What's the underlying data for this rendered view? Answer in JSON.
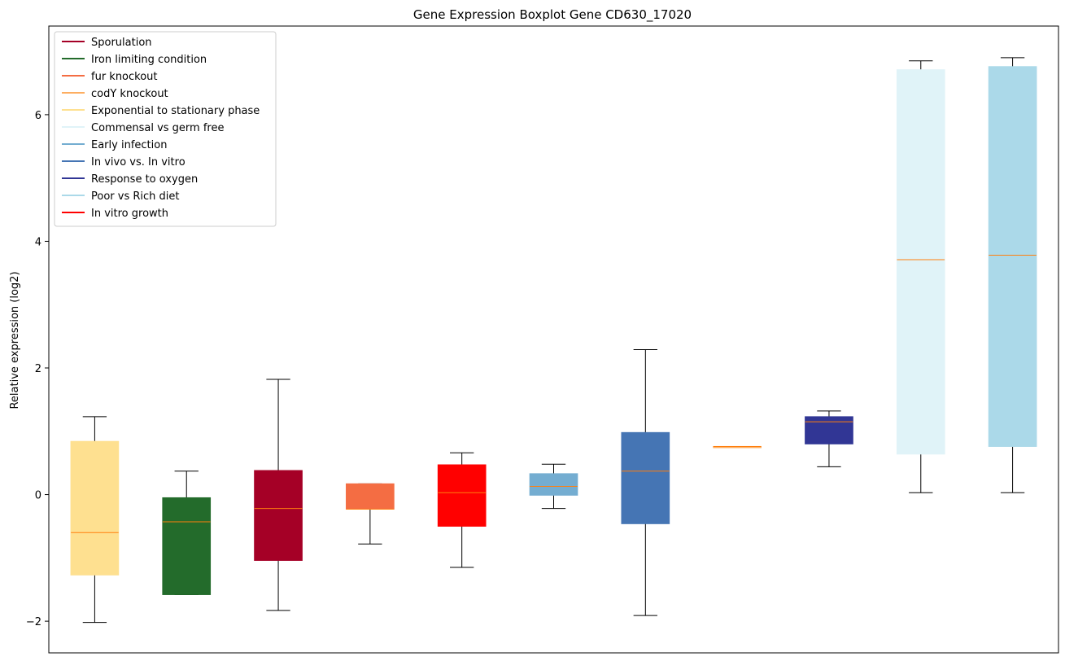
{
  "chart_data": {
    "type": "boxplot",
    "title": "Gene Expression Boxplot Gene CD630_17020",
    "xlabel": "",
    "ylabel": "Relative expression (log2)",
    "ylim": [
      -2.5,
      7.4
    ],
    "yticks": [
      -2,
      0,
      2,
      4,
      6
    ],
    "ytick_labels": [
      "−2",
      "0",
      "2",
      "4",
      "6"
    ],
    "legend_position": "top-left",
    "legend": [
      {
        "label": "Sporulation",
        "color": "#a50026"
      },
      {
        "label": "Iron limiting condition",
        "color": "#236b2b"
      },
      {
        "label": "fur knockout",
        "color": "#f46d43"
      },
      {
        "label": "codY knockout",
        "color": "#fdae61"
      },
      {
        "label": "Exponential to stationary phase",
        "color": "#fee090"
      },
      {
        "label": "Commensal vs germ free",
        "color": "#e0f3f8"
      },
      {
        "label": "Early infection",
        "color": "#74add1"
      },
      {
        "label": "In vivo vs. In vitro",
        "color": "#4575b4"
      },
      {
        "label": "Response to oxygen",
        "color": "#313695"
      },
      {
        "label": "Poor vs Rich diet",
        "color": "#abd9e9"
      },
      {
        "label": "In vitro growth",
        "color": "#ff0000"
      }
    ],
    "boxes": [
      {
        "group": "Exponential to stationary phase",
        "color": "#fee090",
        "whisker_low": -2.02,
        "q1": -1.27,
        "median": -0.6,
        "q3": 0.84,
        "whisker_high": 1.23
      },
      {
        "group": "Iron limiting condition",
        "color": "#236b2b",
        "whisker_low": -1.58,
        "q1": -1.58,
        "median": -0.43,
        "q3": -0.05,
        "whisker_high": 0.37
      },
      {
        "group": "Sporulation",
        "color": "#a50026",
        "whisker_low": -1.83,
        "q1": -1.04,
        "median": -0.22,
        "q3": 0.38,
        "whisker_high": 1.82
      },
      {
        "group": "fur knockout",
        "color": "#f46d43",
        "whisker_low": -0.78,
        "q1": -0.23,
        "median": -0.23,
        "q3": 0.17,
        "whisker_high": 0.17
      },
      {
        "group": "In vitro growth",
        "color": "#ff0000",
        "whisker_low": -1.15,
        "q1": -0.5,
        "median": 0.03,
        "q3": 0.47,
        "whisker_high": 0.66
      },
      {
        "group": "Early infection",
        "color": "#74add1",
        "whisker_low": -0.22,
        "q1": -0.01,
        "median": 0.13,
        "q3": 0.33,
        "whisker_high": 0.48
      },
      {
        "group": "In vivo vs. In vitro",
        "color": "#4575b4",
        "whisker_low": -1.91,
        "q1": -0.46,
        "median": 0.37,
        "q3": 0.98,
        "whisker_high": 2.29
      },
      {
        "group": "codY knockout",
        "color": "#fdae61",
        "whisker_low": 0.76,
        "q1": 0.76,
        "median": 0.76,
        "q3": 0.76,
        "whisker_high": 0.76
      },
      {
        "group": "Response to oxygen",
        "color": "#313695",
        "whisker_low": 0.44,
        "q1": 0.8,
        "median": 1.15,
        "q3": 1.23,
        "whisker_high": 1.32
      },
      {
        "group": "Commensal vs germ free",
        "color": "#e0f3f8",
        "whisker_low": 0.03,
        "q1": 0.64,
        "median": 3.71,
        "q3": 6.71,
        "whisker_high": 6.85
      },
      {
        "group": "Poor vs Rich diet",
        "color": "#abd9e9",
        "whisker_low": 0.03,
        "q1": 0.76,
        "median": 3.78,
        "q3": 6.76,
        "whisker_high": 6.9
      }
    ],
    "median_color": "#ff7f0e",
    "whisker_color": "#000000"
  }
}
